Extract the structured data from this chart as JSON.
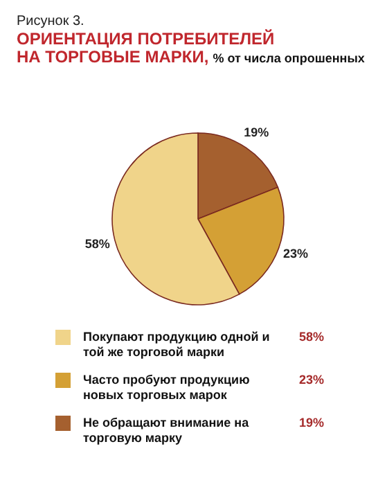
{
  "chart_data": {
    "type": "pie",
    "title": "ОРИЕНТАЦИЯ ПОТРЕБИТЕЛЕЙ НА ТОРГОВЫЕ МАРКИ,",
    "subtitle": "% от числа опрошенных",
    "annotations": [
      "Рисунок 3."
    ],
    "categories": [
      "Не обращают внимание на торговую марку",
      "Часто пробуют продукцию новых торговых марок",
      "Покупают продукцию одной и той же торговой марки"
    ],
    "values": [
      19,
      23,
      58
    ],
    "colors": [
      "#a5602f",
      "#d4a035",
      "#f0d48a"
    ],
    "value_labels": [
      "19%",
      "23%",
      "58%"
    ],
    "legend": "bottom"
  }
}
